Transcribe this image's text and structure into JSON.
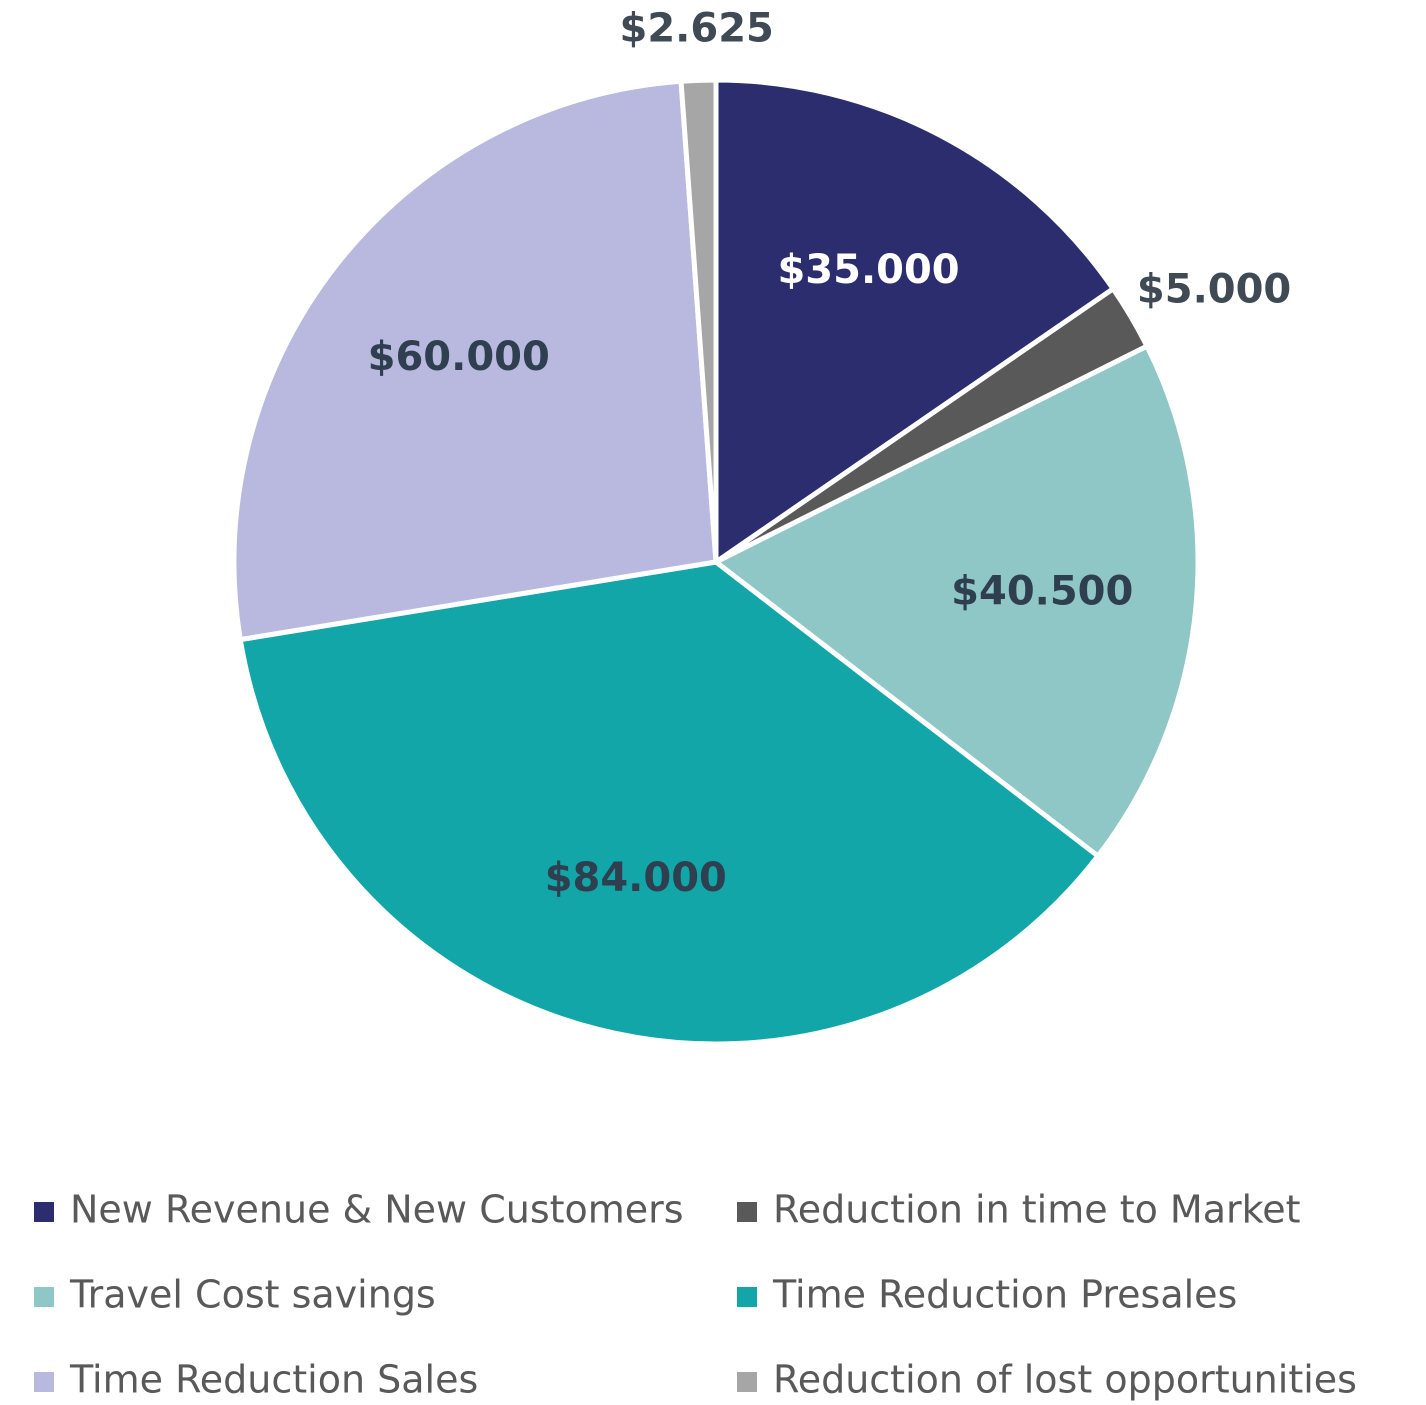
{
  "chart_data": {
    "type": "pie",
    "categories": [
      "New Revenue & New Customers",
      "Reduction in time to Market",
      "Travel Cost savings",
      "Time Reduction Presales",
      "Time Reduction Sales",
      "Reduction of lost opportunities"
    ],
    "values": [
      35000,
      5000,
      40500,
      84000,
      60000,
      2625
    ],
    "value_labels": [
      "$35.000",
      "$5.000",
      "$40.500",
      "$84.000",
      "$60.000",
      "$2.625"
    ],
    "colors": [
      "#2b2d6e",
      "#595959",
      "#8fc6c6",
      "#13a6a9",
      "#b9b9e0",
      "#a6a6a6"
    ],
    "legend": "bottom"
  }
}
